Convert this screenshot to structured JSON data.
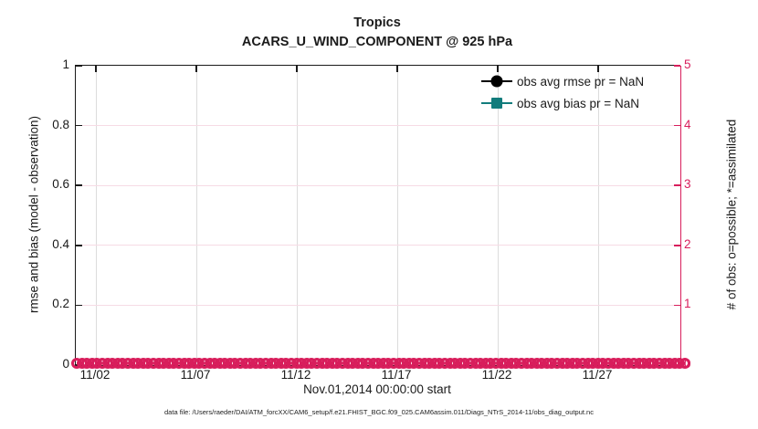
{
  "title": {
    "line1": "Tropics",
    "line2": "ACARS_U_WIND_COMPONENT @ 925 hPa"
  },
  "axes": {
    "left_y": {
      "label": "rmse and bias (model - observation)",
      "ticks": [
        "1",
        "0.8",
        "0.6",
        "0.4",
        "0.2",
        "0"
      ],
      "color": "#1a1a1a"
    },
    "right_y": {
      "label": "# of obs: o=possible; *=assimilated",
      "ticks": [
        "5",
        "4",
        "3",
        "2",
        "1",
        "0"
      ],
      "color": "#d81e5c"
    },
    "x": {
      "label": "Nov.01,2014 00:00:00 start",
      "ticks": [
        "11/02",
        "11/07",
        "11/12",
        "11/17",
        "11/22",
        "11/27"
      ]
    }
  },
  "legend": [
    {
      "label": "obs avg rmse pr = NaN",
      "color": "#000000",
      "marker": "circle"
    },
    {
      "label": "obs avg bias pr = NaN",
      "color": "#127c7c",
      "marker": "square"
    }
  ],
  "caption": "data file: /Users/raeder/DAI/ATM_forcXX/CAM6_setup/f.e21.FHIST_BGC.f09_025.CAM6assim.011/Diags_NTrS_2014-11/obs_diag_output.nc",
  "colors": {
    "accent_pink": "#d81e5c",
    "teal": "#127c7c",
    "grid_vertical": "#dcdcdc",
    "grid_horizontal": "#f6dbe5",
    "axis_black": "#1a1a1a"
  },
  "obs_band": {
    "marker_count": 120,
    "marker_shape": "open-circle",
    "value": 0
  },
  "chart_data": {
    "type": "line",
    "title": "Tropics",
    "subtitle": "ACARS_U_WIND_COMPONENT @ 925 hPa",
    "xlabel": "Nov.01,2014 00:00:00 start",
    "x_tick_labels": [
      "11/02",
      "11/07",
      "11/12",
      "11/17",
      "11/22",
      "11/27"
    ],
    "left_ylabel": "rmse and bias (model - observation)",
    "left_ylim": [
      0,
      1
    ],
    "right_ylabel": "# of obs: o=possible; *=assimilated",
    "right_ylim": [
      0,
      5
    ],
    "grid": true,
    "legend_position": "upper right, no box",
    "series": [
      {
        "name": "obs avg rmse pr = NaN",
        "axis": "left",
        "marker": "filled-circle",
        "color": "#000000",
        "values": "NaN — no curve plotted"
      },
      {
        "name": "obs avg bias pr = NaN",
        "axis": "left",
        "marker": "filled-square",
        "color": "#127c7c",
        "values": "NaN — no curve plotted"
      },
      {
        "name": "# of obs possible (o)",
        "axis": "right",
        "marker": "open-circle",
        "color": "#d81e5c",
        "values": "constant 0 at every time step from 11/01 through 12/01"
      }
    ]
  }
}
